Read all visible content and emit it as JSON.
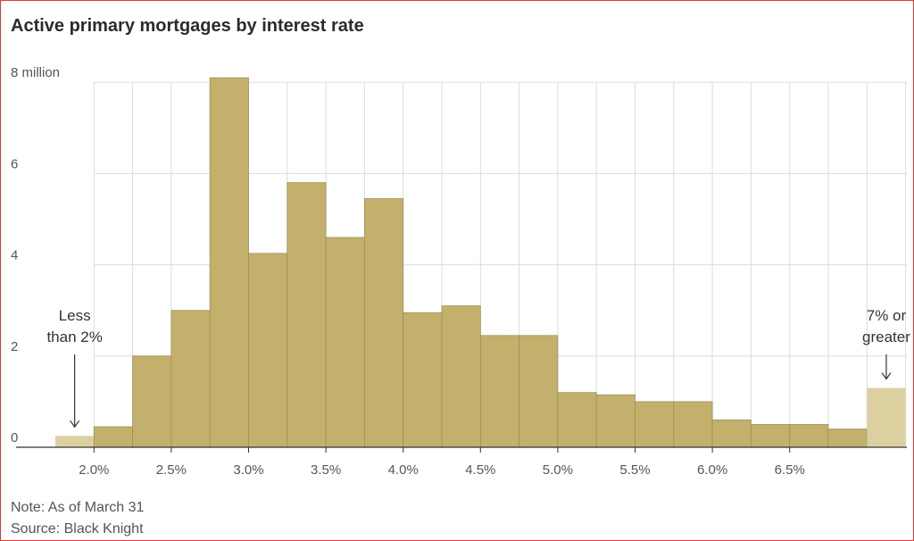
{
  "title": "Active primary mortgages by interest rate",
  "chart_data": {
    "type": "bar",
    "title": "Active primary mortgages by interest rate",
    "xlabel": "",
    "ylabel": "",
    "ylim": [
      0,
      8
    ],
    "y_ticks": [
      0,
      2,
      4,
      6,
      8
    ],
    "y_tick_labels": [
      "0",
      "2",
      "4",
      "6",
      "8 million"
    ],
    "x_tick_labels": [
      "2.0%",
      "2.5%",
      "3.0%",
      "3.5%",
      "4.0%",
      "4.5%",
      "5.0%",
      "5.5%",
      "6.0%",
      "6.5%"
    ],
    "grid": true,
    "bins": [
      "<2.0%",
      "2.0%",
      "2.25%",
      "2.5%",
      "2.75%",
      "3.0%",
      "3.25%",
      "3.5%",
      "3.75%",
      "4.0%",
      "4.25%",
      "4.5%",
      "4.75%",
      "5.0%",
      "5.25%",
      "5.5%",
      "5.75%",
      "6.0%",
      "6.25%",
      "6.5%",
      "6.75%",
      "≥7%"
    ],
    "values": [
      0.25,
      0.45,
      2.0,
      3.0,
      8.1,
      4.25,
      5.8,
      4.6,
      5.45,
      2.95,
      3.1,
      2.45,
      2.45,
      1.2,
      1.15,
      1.0,
      1.0,
      0.6,
      0.5,
      0.5,
      0.4,
      1.3
    ],
    "highlight_bins": [
      0,
      21
    ],
    "colors": {
      "bar": "#c3b06c",
      "bar_edge": "#a0905a",
      "bar_light": "#ddd0a0",
      "grid": "#dcdcdc",
      "axis": "#333333",
      "text": "#555555"
    },
    "annotations": [
      {
        "text_lines": [
          "Less",
          "than 2%"
        ],
        "bin": 0
      },
      {
        "text_lines": [
          "7% or",
          "greater"
        ],
        "bin": 21
      }
    ]
  },
  "notes": {
    "note": "Note: As of March 31",
    "source": "Source: Black Knight"
  }
}
